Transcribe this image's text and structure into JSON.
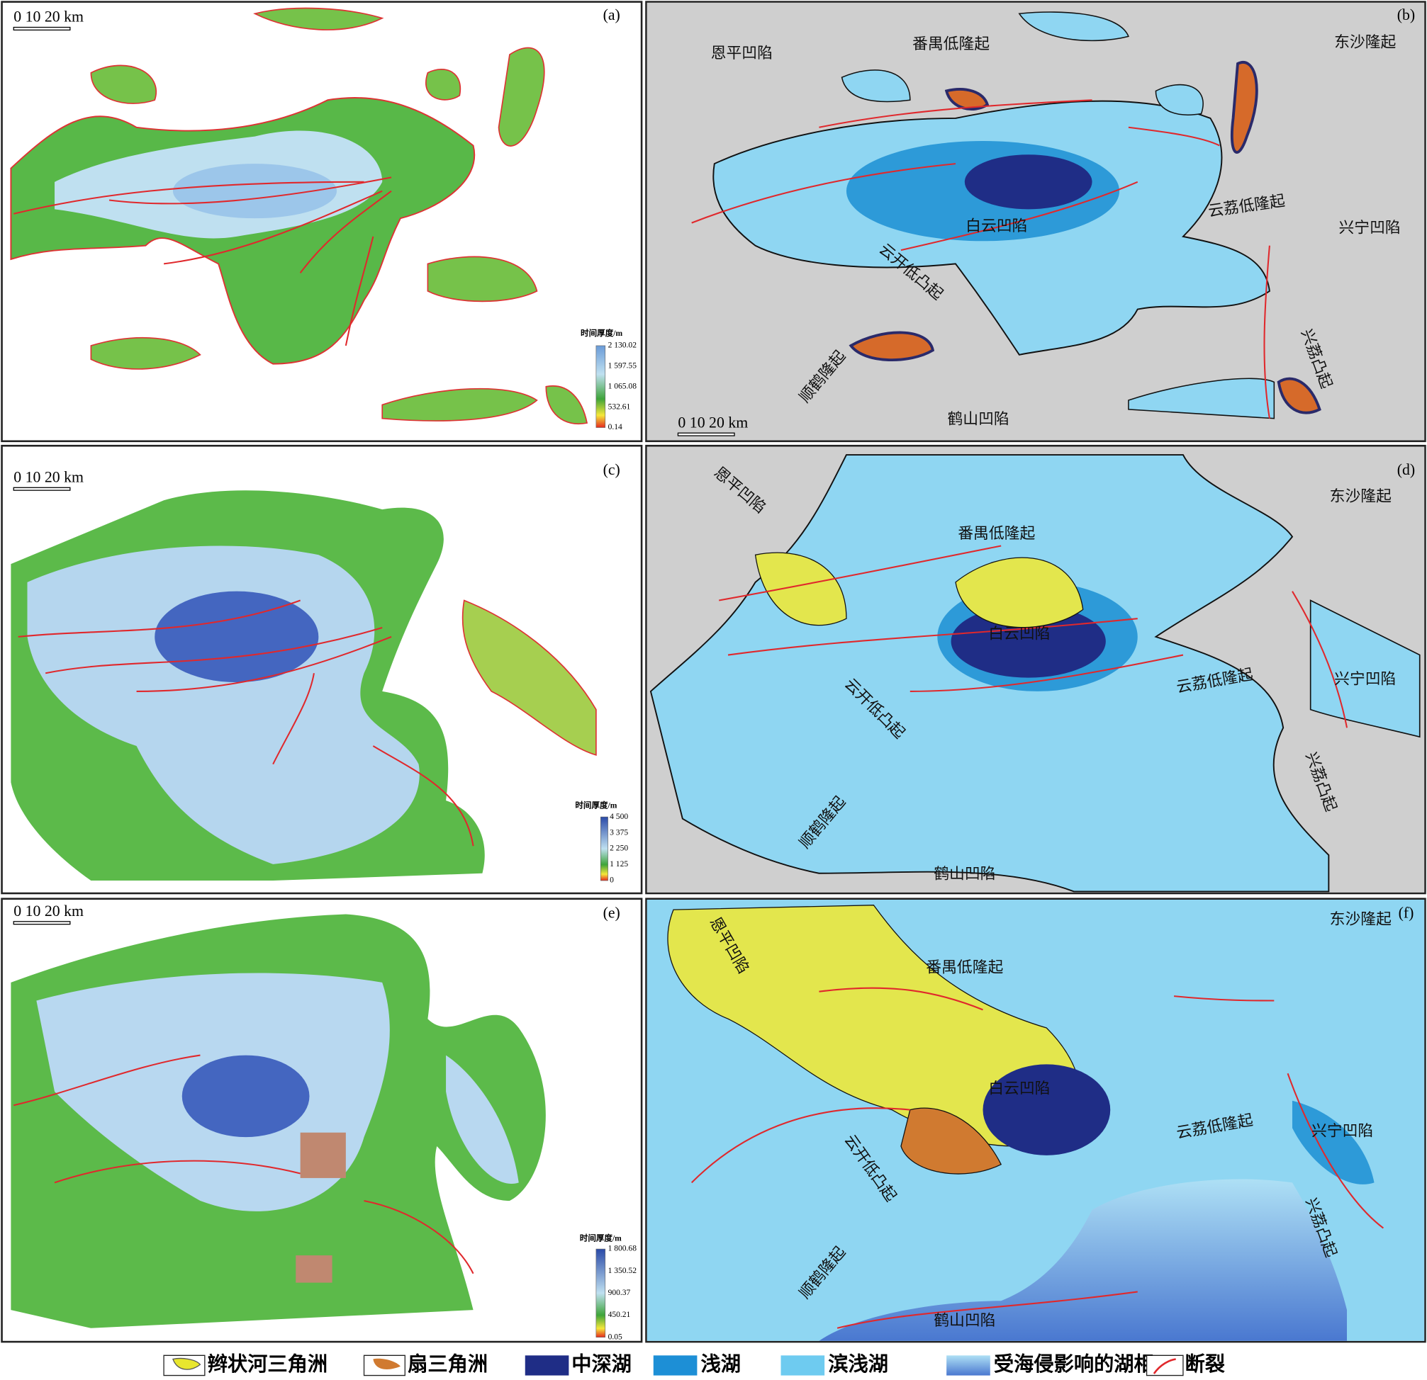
{
  "panels": [
    {
      "label": "(a)",
      "scale_bar": "0 10 20 km",
      "colorbar_title": "时间厚度/m",
      "colorbar_ticks": [
        "2 130.02",
        "1 597.55",
        "1 065.08",
        "532.61",
        "0.14"
      ]
    },
    {
      "label": "(b)",
      "scale_bar": "0 10 20 km",
      "places": [
        "恩平凹陷",
        "番禺低隆起",
        "东沙隆起",
        "白云凹陷",
        "云荔低隆起",
        "兴宁凹陷",
        "云开低凸起",
        "顺鹤隆起",
        "兴荔凸起",
        "鹤山凹陷"
      ]
    },
    {
      "label": "(c)",
      "scale_bar": "0 10 20 km",
      "colorbar_title": "时间厚度/m",
      "colorbar_ticks": [
        "4 500",
        "3 375",
        "2 250",
        "1 125",
        "0"
      ]
    },
    {
      "label": "(d)",
      "places": [
        "恩平凹陷",
        "番禺低隆起",
        "东沙隆起",
        "白云凹陷",
        "云荔低隆起",
        "兴宁凹陷",
        "云开低凸起",
        "顺鹤隆起",
        "兴荔凸起",
        "鹤山凹陷"
      ]
    },
    {
      "label": "(e)",
      "scale_bar": "0 10 20 km",
      "colorbar_title": "时间厚度/m",
      "colorbar_ticks": [
        "1 800.68",
        "1 350.52",
        "900.37",
        "450.21",
        "0.05"
      ]
    },
    {
      "label": "(f)",
      "places": [
        "恩平凹陷",
        "番禺低隆起",
        "东沙隆起",
        "白云凹陷",
        "云荔低隆起",
        "兴宁凹陷",
        "云开低凸起",
        "顺鹤隆起",
        "兴荔凸起",
        "鹤山凹陷"
      ]
    }
  ],
  "legend": [
    "辫状河三角洲",
    "扇三角洲",
    "中深湖",
    "浅湖",
    "滨浅湖",
    "受海侵影响的湖相",
    "断裂"
  ]
}
